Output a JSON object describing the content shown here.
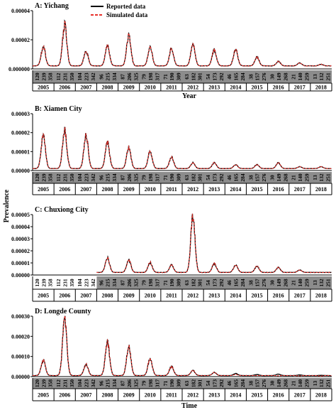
{
  "figure": {
    "ylabel": "Prevalence",
    "legend": {
      "reported": "Reported data",
      "simulated": "Simulated data",
      "placement": "top-center"
    },
    "colors": {
      "reported": "#000000",
      "simulated": "#e8302a",
      "band": "#8c8c8c",
      "grid_band_text": "#000000"
    }
  },
  "chart_data": [
    {
      "type": "line",
      "title": "A: Yichang",
      "xlabel": "Year",
      "ylim": [
        0,
        4e-05
      ],
      "yticks": [
        "0.00004",
        "0.00002",
        "0.000000"
      ],
      "ytick_values": [
        4e-05,
        2e-05,
        0.0
      ],
      "years": [
        "2005",
        "2006",
        "2007",
        "2008",
        "2009",
        "2010",
        "2011",
        "2012",
        "2013",
        "2014",
        "2015",
        "2016",
        "2017",
        "2018"
      ],
      "day_ticks": [
        "120",
        "239",
        "358",
        "112",
        "231",
        "350",
        "104",
        "223",
        "342",
        "96",
        "215",
        "334",
        "87",
        "206",
        "325",
        "79",
        "198",
        "317",
        "71",
        "190",
        "309",
        "63",
        "182",
        "301",
        "54",
        "173",
        "292",
        "46",
        "165",
        "284",
        "38",
        "157",
        "276",
        "30",
        "149",
        "268",
        "21",
        "140",
        "259",
        "13",
        "132",
        "251"
      ],
      "series": [
        {
          "name": "Reported data",
          "peaks": [
            1.5e-05,
            3e-05,
            1.2e-05,
            1.6e-05,
            2.3e-05,
            1.5e-05,
            1.4e-05,
            1.7e-05,
            1.3e-05,
            1.3e-05,
            8e-06,
            5e-06,
            4e-06,
            3e-06
          ]
        },
        {
          "name": "Simulated data",
          "peaks": [
            1.5e-05,
            3e-05,
            1.2e-05,
            1.6e-05,
            2.3e-05,
            1.5e-05,
            1.4e-05,
            1.7e-05,
            1.3e-05,
            1.3e-05,
            8e-06,
            5e-06,
            4e-06,
            3e-06
          ]
        }
      ],
      "baseline": 2e-06
    },
    {
      "type": "line",
      "title": "B: Xiamen City",
      "xlabel": "",
      "ylim": [
        0,
        3e-05
      ],
      "yticks": [
        "0.00003",
        "0.00002",
        "0.00001",
        "0.00000"
      ],
      "ytick_values": [
        3e-05,
        2e-05,
        1e-05,
        0.0
      ],
      "years": [
        "2005",
        "2006",
        "2007",
        "2008",
        "2009",
        "2010",
        "2011",
        "2012",
        "2013",
        "2014",
        "2015",
        "2016",
        "2017",
        "2018"
      ],
      "day_ticks": [
        "120",
        "239",
        "358",
        "112",
        "231",
        "350",
        "104",
        "223",
        "342",
        "96",
        "215",
        "334",
        "87",
        "206",
        "325",
        "79",
        "198",
        "317",
        "71",
        "190",
        "309",
        "63",
        "182",
        "301",
        "54",
        "173",
        "292",
        "46",
        "165",
        "284",
        "38",
        "157",
        "276",
        "30",
        "149",
        "268",
        "21",
        "140",
        "259",
        "13",
        "132",
        "251"
      ],
      "series": [
        {
          "name": "Reported data",
          "peaks": [
            1.8e-05,
            2.1e-05,
            1.9e-05,
            1.5e-05,
            1.2e-05,
            1e-05,
            7e-06,
            4e-06,
            4e-06,
            3e-06,
            3e-06,
            4e-06,
            2e-06,
            2e-06
          ]
        },
        {
          "name": "Simulated data",
          "peaks": [
            1.8e-05,
            2.1e-05,
            1.9e-05,
            1.5e-05,
            1.2e-05,
            1e-05,
            7e-06,
            4e-06,
            4e-06,
            3e-06,
            3e-06,
            4e-06,
            2e-06,
            2e-06
          ]
        }
      ],
      "baseline": 1e-06
    },
    {
      "type": "line",
      "title": "C: Chuxiong City",
      "xlabel": "",
      "ylim": [
        0,
        5e-05
      ],
      "yticks": [
        "0.00005",
        "0.00004",
        "0.00003",
        "0.00002",
        "0.00001",
        "0.00000"
      ],
      "ytick_values": [
        5e-05,
        4e-05,
        3e-05,
        2e-05,
        1e-05,
        0.0
      ],
      "years": [
        "2005",
        "2006",
        "2007",
        "2008",
        "2009",
        "2010",
        "2011",
        "2012",
        "2013",
        "2014",
        "2015",
        "2016",
        "2017",
        "2018"
      ],
      "day_ticks": [
        "120",
        "239",
        "358",
        "112",
        "231",
        "350",
        "104",
        "223",
        "342",
        "96",
        "215",
        "334",
        "87",
        "206",
        "325",
        "79",
        "198",
        "317",
        "71",
        "190",
        "309",
        "63",
        "182",
        "301",
        "54",
        "173",
        "292",
        "46",
        "165",
        "284",
        "38",
        "157",
        "276",
        "30",
        "149",
        "268",
        "21",
        "140",
        "259",
        "13",
        "132",
        "251"
      ],
      "start_year_index": 3,
      "series": [
        {
          "name": "Reported data",
          "peaks": [
            0,
            0,
            0,
            1.4e-05,
            1.2e-05,
            1e-05,
            8e-06,
            4.8e-05,
            9e-06,
            8e-06,
            7e-06,
            6e-06,
            4e-06,
            2e-06
          ]
        },
        {
          "name": "Simulated data",
          "peaks": [
            0,
            0,
            0,
            1.4e-05,
            1.2e-05,
            1e-05,
            8e-06,
            4.8e-05,
            9e-06,
            8e-06,
            7e-06,
            6e-06,
            4e-06,
            2e-06
          ]
        }
      ],
      "baseline": 2e-06
    },
    {
      "type": "line",
      "title": "D: Longde County",
      "xlabel": "Time",
      "ylim": [
        0,
        0.0003
      ],
      "yticks": [
        "0.00030",
        "0.00020",
        "0.00010",
        "0.00000"
      ],
      "ytick_values": [
        0.0003,
        0.0002,
        0.0001,
        0.0
      ],
      "years": [
        "2005",
        "2006",
        "2007",
        "2008",
        "2009",
        "2010",
        "2011",
        "2012",
        "2013",
        "2014",
        "2015",
        "2016",
        "2017",
        "2018"
      ],
      "day_ticks": [
        "120",
        "239",
        "358",
        "112",
        "231",
        "350",
        "104",
        "223",
        "342",
        "96",
        "215",
        "334",
        "87",
        "206",
        "325",
        "79",
        "198",
        "317",
        "71",
        "190",
        "309",
        "63",
        "182",
        "301",
        "54",
        "173",
        "292",
        "46",
        "165",
        "284",
        "38",
        "157",
        "276",
        "30",
        "149",
        "268",
        "21",
        "140",
        "259",
        "13",
        "132",
        "251"
      ],
      "series": [
        {
          "name": "Reported data",
          "peaks": [
            8e-05,
            0.00028,
            6e-05,
            0.00017,
            0.00015,
            9e-05,
            5e-05,
            3e-05,
            2e-05,
            1.5e-05,
            1e-05,
            1.2e-05,
            8e-06,
            6e-06
          ]
        },
        {
          "name": "Simulated data",
          "peaks": [
            8e-05,
            0.00028,
            6e-05,
            0.00017,
            0.00015,
            9e-05,
            5e-05,
            3e-05,
            2e-05,
            1e-05,
            5e-06,
            4e-06,
            3e-06,
            2e-06
          ]
        }
      ],
      "baseline": 5e-06
    }
  ]
}
